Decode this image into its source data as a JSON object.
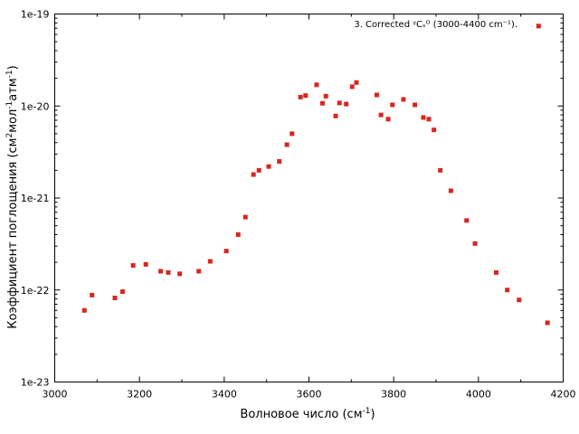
{
  "chart_data": {
    "type": "scatter",
    "xlabel": "Волновое число (см",
    "xlabel_sup": "-1",
    "xlabel_tail": ")",
    "ylabel_parts": [
      "Коэффициент поглощения (см",
      "2",
      "мол",
      "-1",
      "атм",
      "-1",
      ")"
    ],
    "xlim": [
      3000,
      4200
    ],
    "ylim_log10": [
      -23,
      -19
    ],
    "y_scale": "log",
    "x_ticks": [
      3000,
      3200,
      3400,
      3600,
      3800,
      4000,
      4200
    ],
    "x_tick_labels": [
      "3000",
      "3200",
      "3400",
      "3600",
      "3800",
      "4000",
      "4200"
    ],
    "y_ticks": [
      1e-19,
      1e-20,
      1e-21,
      1e-22,
      1e-23
    ],
    "y_tick_labels": [
      "1e-19",
      "1e-20",
      "1e-21",
      "1e-22",
      "1e-23"
    ],
    "grid": false,
    "legend_position": "top-right",
    "series": [
      {
        "name": "3. Corrected ᵞCₛᴼ (3000-4400 cm⁻¹).",
        "color": "#d7261e",
        "marker": "square",
        "x": [
          3070,
          3088,
          3142,
          3160,
          3185,
          3215,
          3250,
          3268,
          3295,
          3340,
          3367,
          3405,
          3433,
          3450,
          3469,
          3482,
          3505,
          3530,
          3548,
          3560,
          3580,
          3592,
          3618,
          3632,
          3640,
          3663,
          3672,
          3688,
          3702,
          3712,
          3760,
          3770,
          3787,
          3797,
          3823,
          3850,
          3870,
          3883,
          3895,
          3910,
          3935,
          3972,
          3992,
          4042,
          4068,
          4096,
          4163,
          4142
        ],
        "y": [
          6e-23,
          8.8e-23,
          8.2e-23,
          9.6e-23,
          1.85e-22,
          1.9e-22,
          1.6e-22,
          1.55e-22,
          1.5e-22,
          1.6e-22,
          2.05e-22,
          2.65e-22,
          4e-22,
          6.2e-22,
          1.8e-21,
          2e-21,
          2.2e-21,
          2.5e-21,
          3.8e-21,
          5e-21,
          1.25e-20,
          1.3e-20,
          1.7e-20,
          1.07e-20,
          1.28e-20,
          7.8e-21,
          1.08e-20,
          1.05e-20,
          1.62e-20,
          1.8e-20,
          1.32e-20,
          8e-21,
          7.2e-21,
          1.03e-20,
          1.18e-20,
          1.03e-20,
          7.5e-21,
          7.2e-21,
          5.5e-21,
          2e-21,
          1.2e-21,
          5.7e-22,
          3.2e-22,
          1.55e-22,
          1e-22,
          7.8e-23,
          4.4e-23,
          7.4e-20
        ]
      }
    ]
  }
}
